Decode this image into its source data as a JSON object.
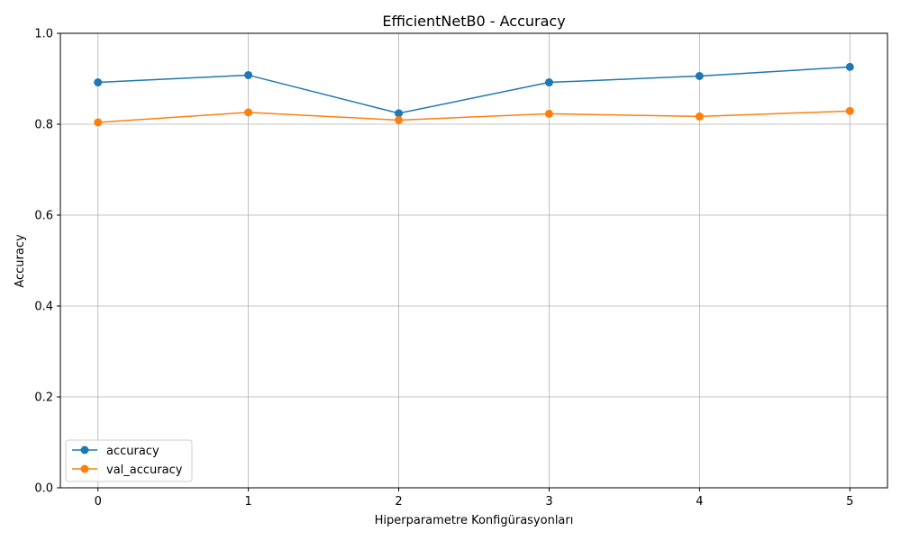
{
  "chart_data": {
    "type": "line",
    "title": "EfficientNetB0 - Accuracy",
    "xlabel": "Hiperparametre Konfigürasyonları",
    "ylabel": "Accuracy",
    "x": [
      0,
      1,
      2,
      3,
      4,
      5
    ],
    "xticks": [
      "0",
      "1",
      "2",
      "3",
      "4",
      "5"
    ],
    "xlim": [
      -0.25,
      5.25
    ],
    "ylim": [
      0.0,
      1.0
    ],
    "yticks": [
      "0.0",
      "0.2",
      "0.4",
      "0.6",
      "0.8",
      "1.0"
    ],
    "grid": true,
    "legend_position": "lower-left",
    "series": [
      {
        "name": "accuracy",
        "color": "#1f77b4",
        "marker": "circle",
        "values": [
          0.892,
          0.908,
          0.824,
          0.892,
          0.906,
          0.926
        ]
      },
      {
        "name": "val_accuracy",
        "color": "#ff7f0e",
        "marker": "circle",
        "values": [
          0.804,
          0.826,
          0.809,
          0.823,
          0.817,
          0.829
        ]
      }
    ]
  }
}
